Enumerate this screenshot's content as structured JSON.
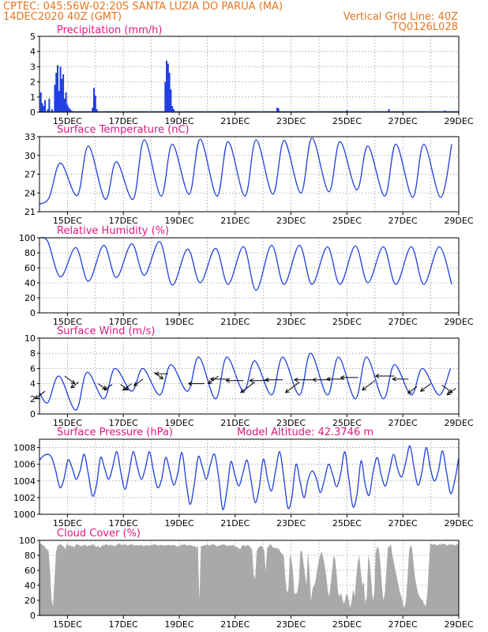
{
  "header": {
    "left_line1": "CPTEC:   045:56W-02:20S   SANTA LUZIA DO PARUA (MA)",
    "left_line2": "14DEC2020 40Z (GMT)",
    "right_line1": "Vertical Grid Line: 40Z",
    "right_line2": "TQ0126L028"
  },
  "colors": {
    "header": "#e8741e",
    "title": "#e0177e",
    "line": "#1f3fe0",
    "bar": "#1f3fe0",
    "cloud": "#a9a9a9",
    "arrow": "#000000"
  },
  "x_labels": [
    "15DEC",
    "17DEC",
    "19DEC",
    "21DEC",
    "23DEC",
    "25DEC",
    "27DEC",
    "29DEC"
  ],
  "chart_data": [
    {
      "type": "bar",
      "title": "Precipitation (mm/h)",
      "ylim": [
        0,
        5
      ],
      "yticks": [
        0,
        1,
        2,
        3,
        4,
        5
      ],
      "x": [
        0.05,
        0.1,
        0.15,
        0.2,
        0.3,
        0.35,
        0.45,
        0.55,
        0.6,
        0.65,
        0.7,
        0.75,
        0.8,
        0.85,
        0.9,
        0.95,
        1.0,
        1.05,
        1.1,
        1.15,
        1.9,
        1.95,
        2.0,
        2.05,
        4.5,
        4.55,
        4.6,
        4.65,
        4.7,
        4.75,
        4.8,
        8.5,
        8.55,
        11.0,
        12.5,
        14.5
      ],
      "values": [
        1.3,
        0.6,
        0.4,
        0.8,
        0.2,
        0.9,
        0.2,
        1.8,
        2.6,
        3.1,
        1.4,
        3.0,
        2.2,
        2.5,
        0.9,
        1.3,
        0.5,
        0.3,
        0.2,
        0.1,
        0.3,
        1.6,
        1.1,
        0.2,
        2.0,
        3.4,
        3.2,
        2.6,
        1.5,
        0.4,
        0.2,
        0.3,
        0.25,
        0.12,
        0.2,
        0.12
      ]
    },
    {
      "type": "line",
      "title": "Surface Temperature (nC)",
      "ylim": [
        21,
        33
      ],
      "yticks": [
        21,
        24,
        27,
        30,
        33
      ],
      "minima": [
        21.8,
        23.3,
        23.6,
        23.0,
        23.0,
        23.5,
        23.8,
        23.5,
        23.5,
        23.8,
        24.0,
        24.2,
        24.5,
        23.5,
        23.3
      ],
      "maxima": [
        28.4,
        28.8,
        31.5,
        29.0,
        32.5,
        31.8,
        32.6,
        32.2,
        32.5,
        32.4,
        32.8,
        32.2,
        31.5,
        31.8
      ]
    },
    {
      "type": "line",
      "title": "Relative Humidity (%)",
      "ylim": [
        0,
        100
      ],
      "yticks": [
        0,
        20,
        40,
        60,
        80,
        100
      ],
      "maxima": [
        100,
        95,
        87,
        90,
        92,
        95,
        85,
        86,
        88,
        90,
        90,
        88,
        89,
        88,
        88
      ],
      "minima": [
        60,
        48,
        42,
        47,
        50,
        37,
        40,
        38,
        30,
        38,
        38,
        38,
        40,
        38
      ]
    },
    {
      "type": "line",
      "title": "Surface Wind (m/s)",
      "ylim": [
        0,
        10
      ],
      "yticks": [
        0,
        2,
        4,
        6,
        8,
        10
      ],
      "maxima": [
        5.5,
        5.0,
        5.5,
        6.0,
        6.0,
        6.5,
        7.5,
        7.5,
        7.0,
        7.5,
        8.0,
        7.5,
        7.5,
        6.5,
        6.0
      ],
      "minima": [
        2.5,
        1.5,
        0.5,
        2.0,
        3.0,
        2.5,
        3.0,
        2.0,
        3.0,
        2.5,
        2.5,
        2.5,
        2.0,
        2.0,
        2.5
      ],
      "arrows": [
        [
          0.2,
          3,
          "sw",
          16
        ],
        [
          0.9,
          5,
          "se",
          16
        ],
        [
          1.4,
          4.2,
          "sw",
          12
        ],
        [
          2.1,
          4,
          "se",
          12
        ],
        [
          2.6,
          3.9,
          "sw",
          12
        ],
        [
          2.9,
          3.9,
          "se",
          12
        ],
        [
          3.3,
          4,
          "sw",
          14
        ],
        [
          3.7,
          4.6,
          "sw",
          14
        ],
        [
          4.1,
          5.5,
          "se",
          14
        ],
        [
          4.6,
          5.3,
          "w",
          16
        ],
        [
          5.9,
          4,
          "w",
          20
        ],
        [
          6.4,
          5,
          "sw",
          16
        ],
        [
          6.8,
          4.6,
          "w",
          24
        ],
        [
          7.3,
          4.4,
          "w",
          22
        ],
        [
          7.7,
          4.2,
          "sw",
          22
        ],
        [
          8.2,
          4.4,
          "w",
          24
        ],
        [
          8.7,
          4.5,
          "w",
          22
        ],
        [
          9.3,
          4.2,
          "sw",
          22
        ],
        [
          9.8,
          4.5,
          "w",
          24
        ],
        [
          10.4,
          4.5,
          "w",
          22
        ],
        [
          10.9,
          4.6,
          "w",
          22
        ],
        [
          11.4,
          4.8,
          "w",
          22
        ],
        [
          12.0,
          4.4,
          "sw",
          20
        ],
        [
          12.7,
          5.0,
          "w",
          24
        ],
        [
          13.2,
          4.6,
          "w",
          20
        ],
        [
          13.5,
          3.6,
          "sw",
          14
        ],
        [
          14.0,
          4.0,
          "sw",
          16
        ],
        [
          14.4,
          3.8,
          "se",
          16
        ],
        [
          14.9,
          3.4,
          "sw",
          14
        ]
      ]
    },
    {
      "type": "line",
      "title": "Surface Pressure (hPa)",
      "annotation": "Model Altitude: 42.3746 m",
      "ylim": [
        1000,
        1009
      ],
      "yticks": [
        1000,
        1002,
        1004,
        1006,
        1008
      ],
      "series_values": [
        1006.5,
        1007,
        1007.2,
        1006.8,
        1005.2,
        1003.2,
        1004.2,
        1006.5,
        1005.6,
        1004.2,
        1005.3,
        1007.2,
        1004.8,
        1002.2,
        1003.5,
        1006.8,
        1005.5,
        1004.2,
        1005.7,
        1007.5,
        1005.0,
        1003.0,
        1005.0,
        1007.5,
        1005.8,
        1004.2,
        1005.5,
        1007.5,
        1005.2,
        1003.2,
        1004.2,
        1006.8,
        1005.2,
        1003.5,
        1005.0,
        1007.4,
        1004.0,
        1001.2,
        1003.5,
        1006.9,
        1005.7,
        1004.2,
        1006.0,
        1007.2,
        1004.5,
        1000.6,
        1002.7,
        1006.3,
        1004.7,
        1003.4,
        1005.0,
        1006.5,
        1004.0,
        1001.4,
        1003.3,
        1006.6,
        1004.3,
        1002.8,
        1005.2,
        1007.5,
        1004.5,
        1000.8,
        1002.0,
        1006.0,
        1004.0,
        1002.0,
        1004.2,
        1005.2,
        1004.3,
        1002.6,
        1004.2,
        1006.0,
        1004.8,
        1003.3,
        1004.9,
        1007.5,
        1004.2,
        1000.9,
        1002.4,
        1006.4,
        1003.6,
        1002.3,
        1005.2,
        1006.8,
        1004.6,
        1003.4,
        1005.3,
        1007.2,
        1005.4,
        1004.5,
        1006.3,
        1008.2,
        1005.6,
        1003.5,
        1005.2,
        1008.0,
        1005.6,
        1004.0,
        1005.2,
        1007.6,
        1005.0,
        1002.5,
        1004.0,
        1006.8
      ]
    },
    {
      "type": "area",
      "title": "Cloud Cover (%)",
      "ylim": [
        0,
        100
      ],
      "yticks": [
        0,
        20,
        40,
        60,
        80,
        100
      ],
      "values": [
        95,
        96,
        94,
        93,
        90,
        88,
        86,
        60,
        20,
        12,
        50,
        85,
        93,
        94,
        95,
        93,
        92,
        88,
        95,
        93,
        94,
        92,
        93,
        90,
        94,
        95,
        94,
        93,
        92,
        94,
        94,
        93,
        92,
        94,
        93,
        95,
        94,
        92,
        91,
        93,
        90,
        92,
        94,
        93,
        95,
        94,
        93,
        94,
        94,
        93,
        92,
        94,
        95,
        96,
        94,
        94,
        94,
        95,
        93,
        94,
        94,
        95,
        94,
        93,
        94,
        93,
        94,
        93,
        94,
        92,
        93,
        94,
        93,
        94,
        93,
        94,
        95,
        94,
        94,
        93,
        94,
        94,
        93,
        94,
        93,
        94,
        94,
        93,
        94,
        94,
        93,
        92,
        92,
        93,
        94,
        94,
        95,
        94,
        93,
        94,
        94,
        93,
        92,
        93,
        90,
        93,
        20,
        92,
        93,
        93,
        94,
        94,
        94,
        93,
        94,
        95,
        94,
        93,
        92,
        93,
        94,
        94,
        95,
        94,
        93,
        92,
        94,
        93,
        94,
        93,
        92,
        91,
        90,
        88,
        92,
        94,
        93,
        92,
        94,
        93,
        90,
        88,
        55,
        48,
        86,
        90,
        92,
        93,
        91,
        86,
        58,
        90,
        92,
        95,
        93,
        90,
        90,
        90,
        89,
        88,
        84,
        82,
        80,
        50,
        30,
        35,
        80,
        75,
        60,
        30,
        28,
        32,
        45,
        85,
        86,
        70,
        55,
        40,
        85,
        60,
        20,
        35,
        40,
        45,
        60,
        70,
        80,
        85,
        78,
        68,
        55,
        35,
        25,
        40,
        60,
        80,
        75,
        55,
        30,
        25,
        30,
        20,
        15,
        25,
        30,
        20,
        10,
        20,
        35,
        25,
        50,
        70,
        80,
        60,
        40,
        45,
        15,
        25,
        80,
        70,
        45,
        20,
        30,
        85,
        92,
        88,
        70,
        40,
        20,
        30,
        60,
        90,
        92,
        95,
        80,
        70,
        60,
        50,
        40,
        30,
        25,
        15,
        10,
        20,
        50,
        85,
        94,
        90,
        70,
        50,
        40,
        30,
        25,
        22,
        20,
        15,
        12,
        25,
        60,
        94,
        95,
        94,
        95,
        94,
        93,
        95,
        94,
        96,
        95,
        95,
        93,
        94,
        95,
        94,
        95,
        93,
        94,
        95,
        96
      ]
    }
  ]
}
